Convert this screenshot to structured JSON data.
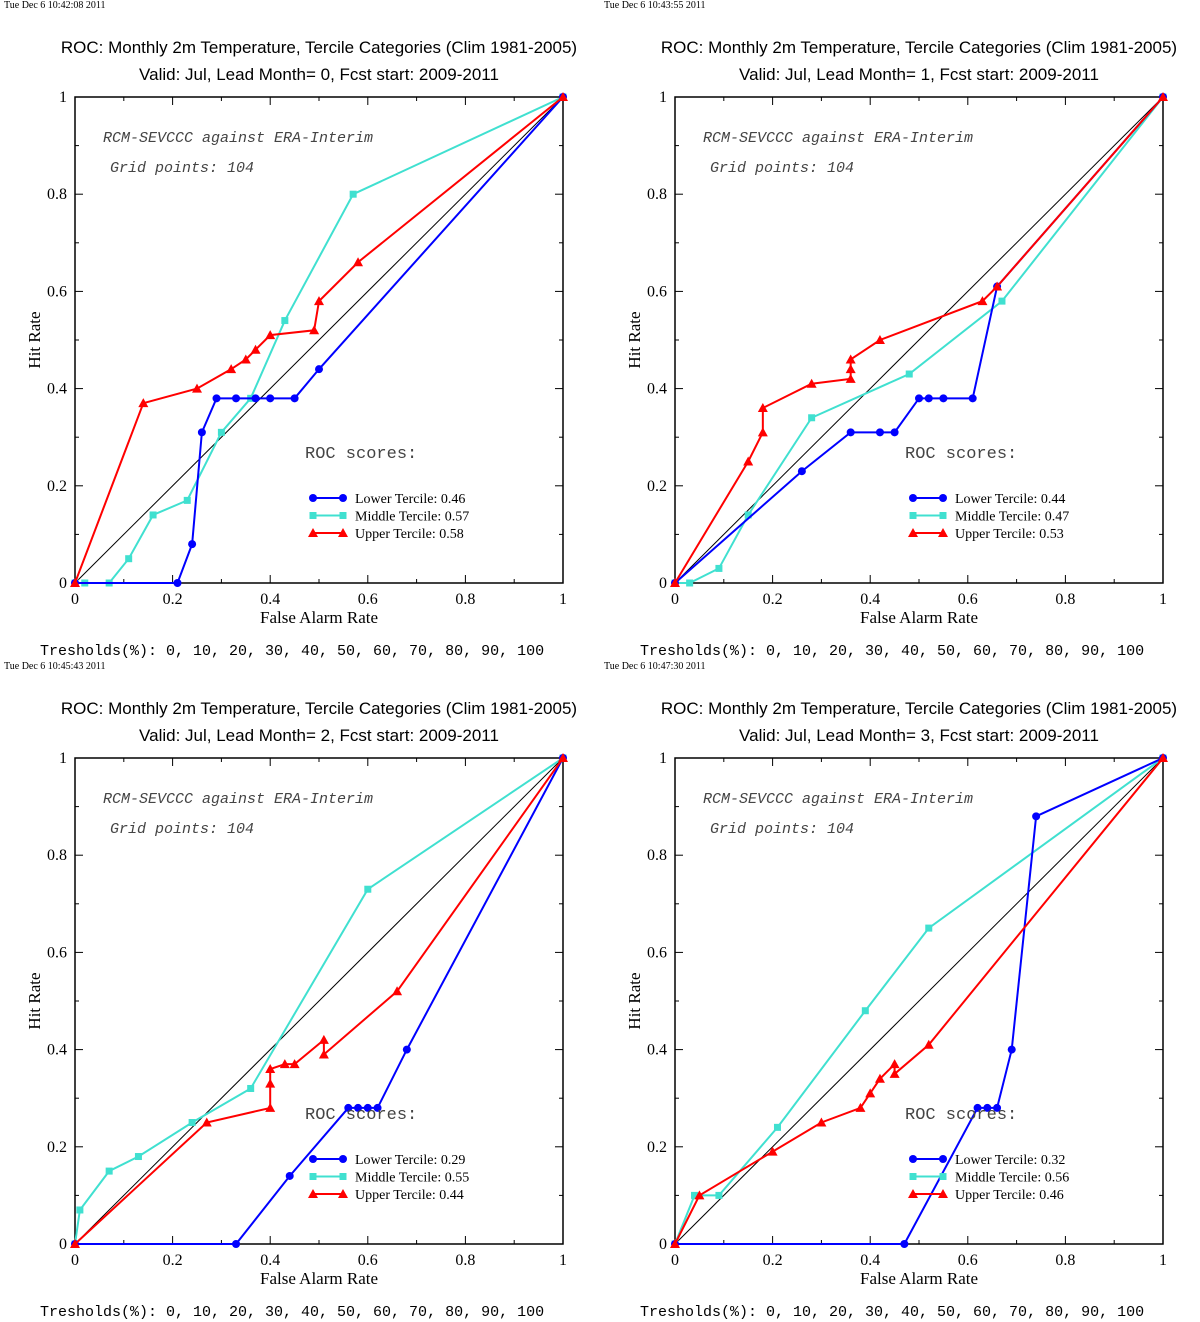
{
  "charts_common": {
    "title": "ROC: Monthly 2m Temperature, Tercile Categories (Clim 1981-2005)",
    "xlabel": "False Alarm Rate",
    "ylabel": "Hit Rate",
    "annotation1": "RCM-SEVCCC against ERA-Interim",
    "annotation2": "Grid points:  104",
    "roc_label": "ROC scores:",
    "thresholds": "Tresholds(%): 0, 10, 20, 30, 40, 50, 60, 70, 80, 90, 100",
    "x_ticks": [
      "0",
      "0.2",
      "0.4",
      "0.6",
      "0.8",
      "1"
    ],
    "y_ticks": [
      "0",
      "0.2",
      "0.4",
      "0.6",
      "0.8",
      "1"
    ]
  },
  "colors": {
    "lower": "#0000ff",
    "middle": "#40e0d0",
    "upper": "#ff0000",
    "diagonal": "#000000"
  },
  "chart_data": [
    {
      "type": "line",
      "timestamp": "Tue Dec  6 10:42:08 2011",
      "subtitle": "Valid: Jul, Lead Month= 0, Fcst start: 2009-2011",
      "xlim": [
        0,
        1
      ],
      "ylim": [
        0,
        1
      ],
      "series": [
        {
          "name": "Lower Tercile: 0.46",
          "marker": "circle",
          "x": [
            1,
            0.5,
            0.45,
            0.4,
            0.37,
            0.33,
            0.29,
            0.26,
            0.24,
            0.21,
            0
          ],
          "y": [
            1,
            0.44,
            0.38,
            0.38,
            0.38,
            0.38,
            0.38,
            0.31,
            0.08,
            0,
            0
          ]
        },
        {
          "name": "Middle Tercile: 0.57",
          "marker": "square",
          "x": [
            1,
            0.57,
            0.43,
            0.36,
            0.3,
            0.23,
            0.16,
            0.11,
            0.07,
            0.02,
            0
          ],
          "y": [
            1,
            0.8,
            0.54,
            0.38,
            0.31,
            0.17,
            0.14,
            0.05,
            0,
            0,
            0
          ]
        },
        {
          "name": "Upper Tercile: 0.58",
          "marker": "triangle",
          "x": [
            1,
            0.58,
            0.5,
            0.49,
            0.4,
            0.37,
            0.35,
            0.32,
            0.25,
            0.14,
            0
          ],
          "y": [
            1,
            0.66,
            0.58,
            0.52,
            0.51,
            0.48,
            0.46,
            0.44,
            0.4,
            0.37,
            0
          ]
        }
      ]
    },
    {
      "type": "line",
      "timestamp": "Tue Dec  6 10:43:55 2011",
      "subtitle": "Valid: Jul, Lead Month= 1, Fcst start: 2009-2011",
      "xlim": [
        0,
        1
      ],
      "ylim": [
        0,
        1
      ],
      "series": [
        {
          "name": "Lower Tercile: 0.44",
          "marker": "circle",
          "x": [
            1,
            0.66,
            0.61,
            0.55,
            0.52,
            0.5,
            0.45,
            0.42,
            0.36,
            0.26,
            0
          ],
          "y": [
            1,
            0.61,
            0.38,
            0.38,
            0.38,
            0.38,
            0.31,
            0.31,
            0.31,
            0.23,
            0
          ]
        },
        {
          "name": "Middle Tercile: 0.47",
          "marker": "square",
          "x": [
            1,
            0.67,
            0.48,
            0.28,
            0.15,
            0.09,
            0.03,
            0
          ],
          "y": [
            1,
            0.58,
            0.43,
            0.34,
            0.14,
            0.03,
            0,
            0
          ]
        },
        {
          "name": "Upper Tercile: 0.53",
          "marker": "triangle",
          "x": [
            1,
            0.66,
            0.63,
            0.42,
            0.36,
            0.36,
            0.36,
            0.28,
            0.18,
            0.18,
            0.15,
            0
          ],
          "y": [
            1,
            0.61,
            0.58,
            0.5,
            0.46,
            0.44,
            0.42,
            0.41,
            0.36,
            0.31,
            0.25,
            0
          ]
        }
      ]
    },
    {
      "type": "line",
      "timestamp": "Tue Dec  6 10:45:43 2011",
      "subtitle": "Valid: Jul, Lead Month= 2, Fcst start: 2009-2011",
      "xlim": [
        0,
        1
      ],
      "ylim": [
        0,
        1
      ],
      "series": [
        {
          "name": "Lower Tercile: 0.29",
          "marker": "circle",
          "x": [
            1,
            0.68,
            0.62,
            0.6,
            0.58,
            0.56,
            0.44,
            0.33,
            0
          ],
          "y": [
            1,
            0.4,
            0.28,
            0.28,
            0.28,
            0.28,
            0.14,
            0,
            0
          ]
        },
        {
          "name": "Middle Tercile: 0.55",
          "marker": "square",
          "x": [
            1,
            0.6,
            0.36,
            0.24,
            0.13,
            0.07,
            0.01,
            0
          ],
          "y": [
            1,
            0.73,
            0.32,
            0.25,
            0.18,
            0.15,
            0.07,
            0
          ]
        },
        {
          "name": "Upper Tercile: 0.44",
          "marker": "triangle",
          "x": [
            1,
            0.66,
            0.51,
            0.51,
            0.45,
            0.43,
            0.4,
            0.4,
            0.4,
            0.27,
            0
          ],
          "y": [
            1,
            0.52,
            0.39,
            0.42,
            0.37,
            0.37,
            0.36,
            0.33,
            0.28,
            0.25,
            0
          ]
        }
      ]
    },
    {
      "type": "line",
      "timestamp": "Tue Dec  6 10:47:30 2011",
      "subtitle": "Valid: Jul, Lead Month= 3, Fcst start: 2009-2011",
      "xlim": [
        0,
        1
      ],
      "ylim": [
        0,
        1
      ],
      "series": [
        {
          "name": "Lower Tercile: 0.32",
          "marker": "circle",
          "x": [
            1,
            0.74,
            0.69,
            0.66,
            0.64,
            0.62,
            0.47,
            0
          ],
          "y": [
            1,
            0.88,
            0.4,
            0.28,
            0.28,
            0.28,
            0,
            0
          ]
        },
        {
          "name": "Middle Tercile: 0.56",
          "marker": "square",
          "x": [
            1,
            0.52,
            0.39,
            0.21,
            0.09,
            0.04,
            0
          ],
          "y": [
            1,
            0.65,
            0.48,
            0.24,
            0.1,
            0.1,
            0
          ]
        },
        {
          "name": "Upper Tercile: 0.46",
          "marker": "triangle",
          "x": [
            1,
            0.52,
            0.45,
            0.45,
            0.42,
            0.4,
            0.38,
            0.3,
            0.2,
            0.05,
            0
          ],
          "y": [
            1,
            0.41,
            0.35,
            0.37,
            0.34,
            0.31,
            0.28,
            0.25,
            0.19,
            0.1,
            0
          ]
        }
      ]
    }
  ]
}
